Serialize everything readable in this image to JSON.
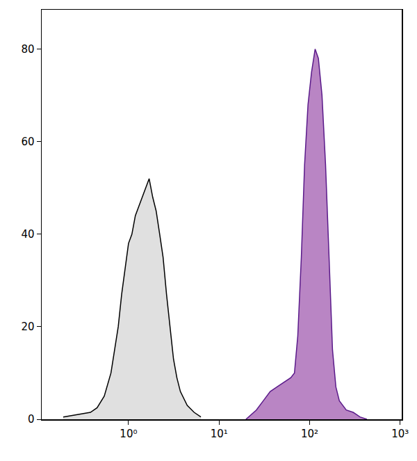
{
  "chart_data": {
    "type": "area",
    "log": "x",
    "grid": false,
    "xlim": [
      0.11,
      1040
    ],
    "ylim": [
      0,
      88.5
    ],
    "xticks": [
      {
        "value": 1,
        "label": "10⁰"
      },
      {
        "value": 10,
        "label": "10¹"
      },
      {
        "value": 100,
        "label": "10²"
      },
      {
        "value": 1000,
        "label": "10³"
      }
    ],
    "yticks": [
      0,
      20,
      40,
      60,
      80
    ],
    "series": [
      {
        "color": "#e0e0e0",
        "x": [
          0.19,
          0.27,
          0.38,
          0.45,
          0.54,
          0.64,
          0.7,
          0.77,
          0.84,
          0.92,
          1.0,
          1.09,
          1.19,
          1.3,
          1.42,
          1.55,
          1.69,
          1.85,
          2.02,
          2.21,
          2.41,
          2.63,
          2.87,
          3.14,
          3.42,
          3.74,
          4.45,
          5.3,
          6.3
        ],
        "values": [
          0.5,
          1,
          1.5,
          2.5,
          5,
          10,
          15,
          20,
          27,
          33,
          38,
          40,
          44,
          46,
          48,
          50,
          52,
          48,
          45,
          40,
          35,
          27,
          20,
          13,
          9,
          6,
          3,
          1.5,
          0.5
        ]
      },
      {
        "color": "#b985c4",
        "x": [
          19.8,
          25.8,
          30.8,
          36.7,
          43.7,
          52,
          62,
          68,
          74,
          81,
          88,
          96,
          105,
          115,
          125,
          137,
          150,
          164,
          179,
          195,
          213,
          254,
          303,
          360,
          430
        ],
        "values": [
          0,
          2,
          4,
          6,
          7,
          8,
          9,
          10,
          18,
          35,
          55,
          68,
          75,
          80,
          78,
          70,
          55,
          35,
          15,
          7,
          4,
          2,
          1.5,
          0.5,
          0
        ]
      }
    ]
  }
}
